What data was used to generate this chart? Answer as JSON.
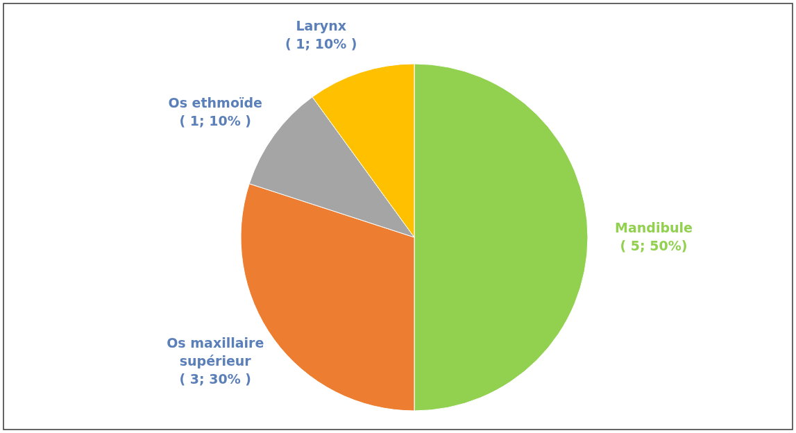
{
  "chart_data": {
    "type": "pie",
    "categories": [
      "Mandibule",
      "Os maxillaire supérieur",
      "Os ethmoïde",
      "Larynx"
    ],
    "values": [
      5,
      3,
      1,
      1
    ],
    "colors": [
      "#92d050",
      "#ed7d31",
      "#a5a5a5",
      "#ffc000"
    ],
    "value_labels": [
      "( 5; 50%)",
      "( 3; 30% )",
      "( 1; 10% )",
      "( 1; 10% )"
    ]
  }
}
